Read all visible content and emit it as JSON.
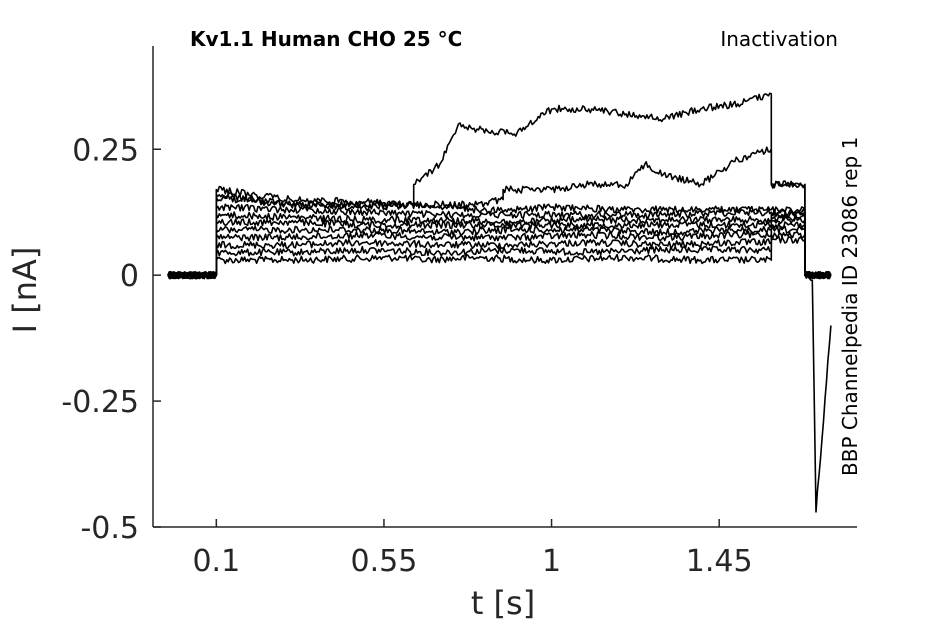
{
  "chart_data": {
    "type": "line",
    "title": "Kv1.1  Human  CHO  25 °C",
    "protocol_label": "Inactivation",
    "side_label": "BBP Channelpedia ID 23086 rep 1",
    "xlabel": "t [s]",
    "ylabel": "I [nA]",
    "xlim": [
      -0.07,
      1.82
    ],
    "ylim": [
      -0.5,
      0.455
    ],
    "x_ticks": [
      0.1,
      0.55,
      1,
      1.45
    ],
    "x_tick_labels": [
      "0.1",
      "0.55",
      "1",
      "1.45"
    ],
    "y_ticks": [
      0.25,
      0,
      -0.25,
      -0.5
    ],
    "y_tick_labels": [
      "0.25",
      "0",
      "-0.25",
      "-0.5"
    ],
    "grid": false,
    "line_color": "#000000",
    "series": [
      {
        "x": [
          -0.03,
          0.1,
          0.1,
          0.3,
          0.6,
          0.65,
          0.8,
          0.95,
          1.0,
          1.2,
          1.4,
          1.59,
          1.59,
          1.68,
          1.68,
          1.7,
          1.71,
          1.75
        ],
        "y": [
          0.0,
          0.0,
          0.03,
          0.03,
          0.035,
          0.03,
          0.035,
          0.03,
          0.03,
          0.035,
          0.03,
          0.03,
          0.07,
          0.07,
          0.0,
          -0.01,
          -0.47,
          -0.1
        ]
      },
      {
        "x": [
          -0.03,
          0.1,
          0.1,
          0.3,
          0.5,
          0.7,
          0.9,
          1.1,
          1.3,
          1.5,
          1.59,
          1.59,
          1.68,
          1.68,
          1.75
        ],
        "y": [
          0.0,
          0.0,
          0.045,
          0.045,
          0.05,
          0.045,
          0.05,
          0.045,
          0.05,
          0.05,
          0.05,
          0.08,
          0.08,
          0.0,
          0.0
        ]
      },
      {
        "x": [
          -0.03,
          0.1,
          0.1,
          0.3,
          0.5,
          0.7,
          0.9,
          1.1,
          1.3,
          1.5,
          1.59,
          1.59,
          1.68,
          1.68,
          1.75
        ],
        "y": [
          0.0,
          0.0,
          0.06,
          0.06,
          0.065,
          0.06,
          0.06,
          0.065,
          0.06,
          0.065,
          0.065,
          0.09,
          0.09,
          0.0,
          0.0
        ]
      },
      {
        "x": [
          -0.03,
          0.1,
          0.1,
          0.3,
          0.5,
          0.7,
          0.9,
          1.1,
          1.3,
          1.5,
          1.59,
          1.59,
          1.68,
          1.68,
          1.75
        ],
        "y": [
          0.0,
          0.0,
          0.075,
          0.075,
          0.08,
          0.075,
          0.075,
          0.08,
          0.075,
          0.08,
          0.08,
          0.1,
          0.1,
          0.0,
          0.0
        ]
      },
      {
        "x": [
          -0.03,
          0.1,
          0.1,
          0.3,
          0.5,
          0.7,
          0.9,
          1.1,
          1.3,
          1.5,
          1.59,
          1.59,
          1.68,
          1.68,
          1.75
        ],
        "y": [
          0.0,
          0.0,
          0.09,
          0.09,
          0.09,
          0.085,
          0.09,
          0.09,
          0.085,
          0.09,
          0.09,
          0.11,
          0.11,
          0.0,
          0.0
        ]
      },
      {
        "x": [
          -0.03,
          0.1,
          0.1,
          0.3,
          0.5,
          0.7,
          0.9,
          1.1,
          1.3,
          1.5,
          1.59,
          1.59,
          1.68,
          1.68,
          1.75
        ],
        "y": [
          0.0,
          0.0,
          0.105,
          0.105,
          0.1,
          0.1,
          0.1,
          0.1,
          0.1,
          0.1,
          0.1,
          0.115,
          0.115,
          0.0,
          0.0
        ]
      },
      {
        "x": [
          -0.03,
          0.1,
          0.1,
          0.3,
          0.5,
          0.7,
          0.9,
          1.1,
          1.3,
          1.5,
          1.59,
          1.59,
          1.68,
          1.68,
          1.75
        ],
        "y": [
          0.0,
          0.0,
          0.12,
          0.115,
          0.11,
          0.11,
          0.105,
          0.11,
          0.11,
          0.11,
          0.11,
          0.12,
          0.12,
          0.0,
          0.0
        ]
      },
      {
        "x": [
          -0.03,
          0.1,
          0.1,
          0.3,
          0.5,
          0.7,
          0.9,
          1.1,
          1.3,
          1.5,
          1.59,
          1.59,
          1.68,
          1.68,
          1.75
        ],
        "y": [
          0.0,
          0.0,
          0.135,
          0.13,
          0.125,
          0.12,
          0.12,
          0.12,
          0.12,
          0.125,
          0.125,
          0.125,
          0.125,
          0.0,
          0.0
        ]
      },
      {
        "x": [
          -0.03,
          0.1,
          0.1,
          0.3,
          0.5,
          0.65,
          0.8,
          0.9,
          1.0,
          1.2,
          1.4,
          1.59,
          1.59,
          1.68,
          1.68,
          1.75
        ],
        "y": [
          0.0,
          0.0,
          0.155,
          0.14,
          0.135,
          0.14,
          0.13,
          0.13,
          0.135,
          0.13,
          0.13,
          0.13,
          0.13,
          0.13,
          0.0,
          0.0
        ]
      },
      {
        "x": [
          -0.03,
          0.1,
          0.1,
          0.3,
          0.5,
          0.6,
          0.8,
          0.87,
          0.87,
          1.0,
          1.1,
          1.2,
          1.25,
          1.3,
          1.4,
          1.5,
          1.59,
          1.59,
          1.68,
          1.68,
          1.75
        ],
        "y": [
          0.0,
          0.0,
          0.17,
          0.15,
          0.145,
          0.14,
          0.14,
          0.15,
          0.17,
          0.17,
          0.18,
          0.18,
          0.22,
          0.2,
          0.18,
          0.23,
          0.25,
          0.18,
          0.18,
          0.0,
          0.0
        ]
      },
      {
        "x": [
          -0.03,
          0.1,
          0.1,
          0.3,
          0.5,
          0.63,
          0.63,
          0.7,
          0.75,
          0.8,
          0.9,
          1.0,
          1.1,
          1.2,
          1.3,
          1.4,
          1.5,
          1.59,
          1.59,
          1.68,
          1.68,
          1.75
        ],
        "y": [
          0.0,
          0.0,
          0.16,
          0.14,
          0.14,
          0.14,
          0.18,
          0.22,
          0.3,
          0.29,
          0.28,
          0.33,
          0.33,
          0.32,
          0.31,
          0.33,
          0.34,
          0.36,
          0.18,
          0.18,
          0.0,
          0.0
        ]
      }
    ]
  }
}
